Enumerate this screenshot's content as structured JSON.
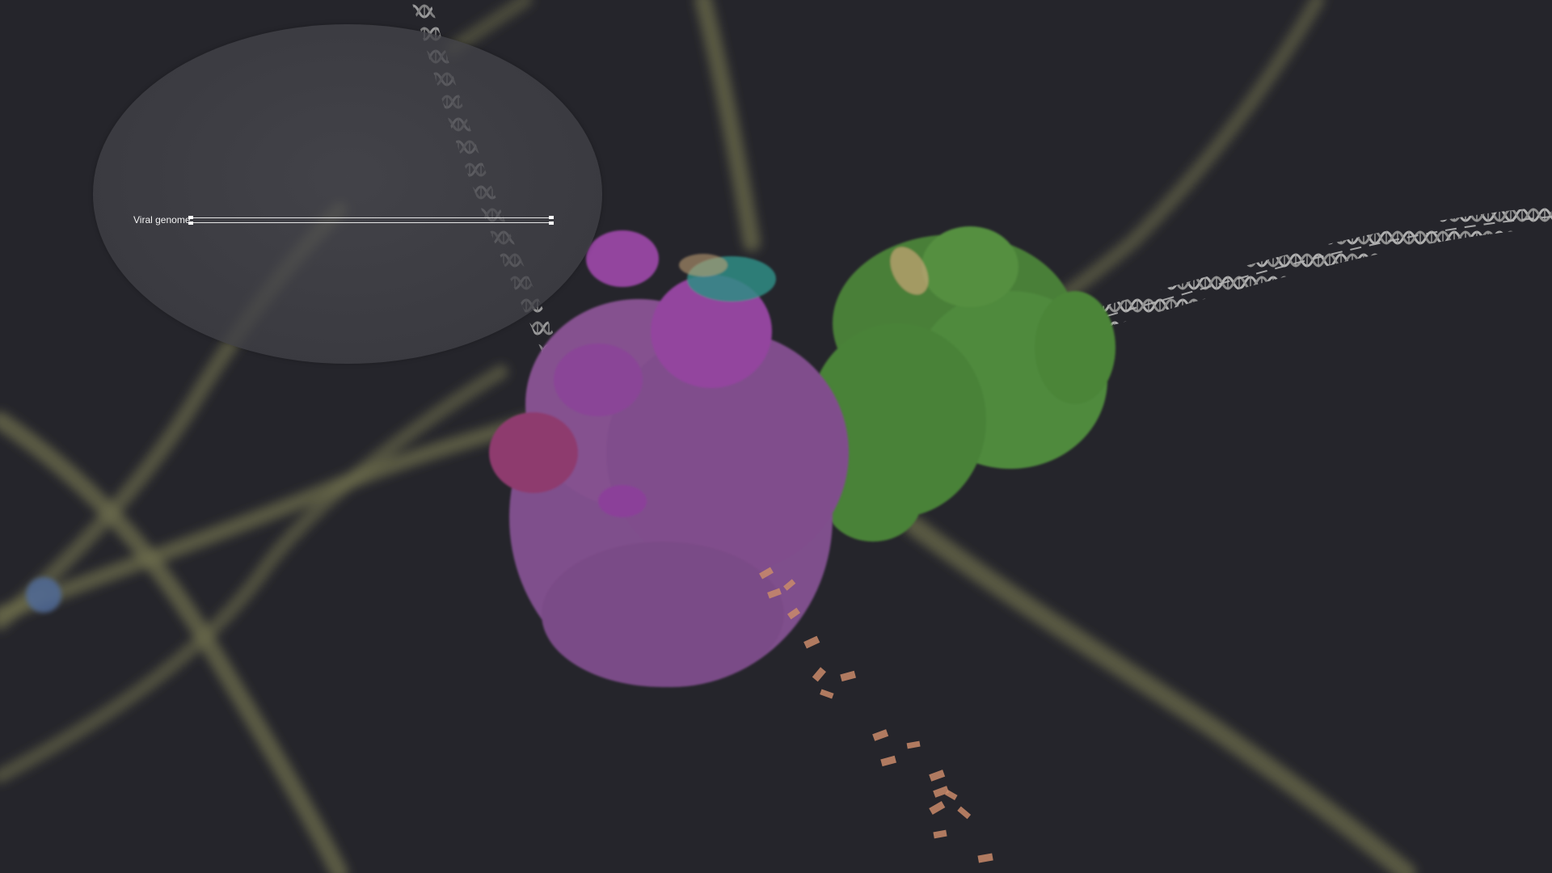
{
  "overlay": {
    "genome_label": "Viral genome",
    "genome_track": {
      "start_fraction": 0.0,
      "end_fraction": 1.0
    }
  },
  "scene": {
    "background_color": "#25252b",
    "dna_color": "#a8a8a8",
    "filament_color": "#7a7a52",
    "polymerase_color": "#8a5a96",
    "cap_color": "#9b4aa6",
    "green_complex_color": "#4f8a3c",
    "teal_color": "#2f8c84",
    "rna_fragment_color": "#c98a6a",
    "icons": [
      "dna-helix",
      "protein-complex",
      "rna-fragments"
    ]
  }
}
